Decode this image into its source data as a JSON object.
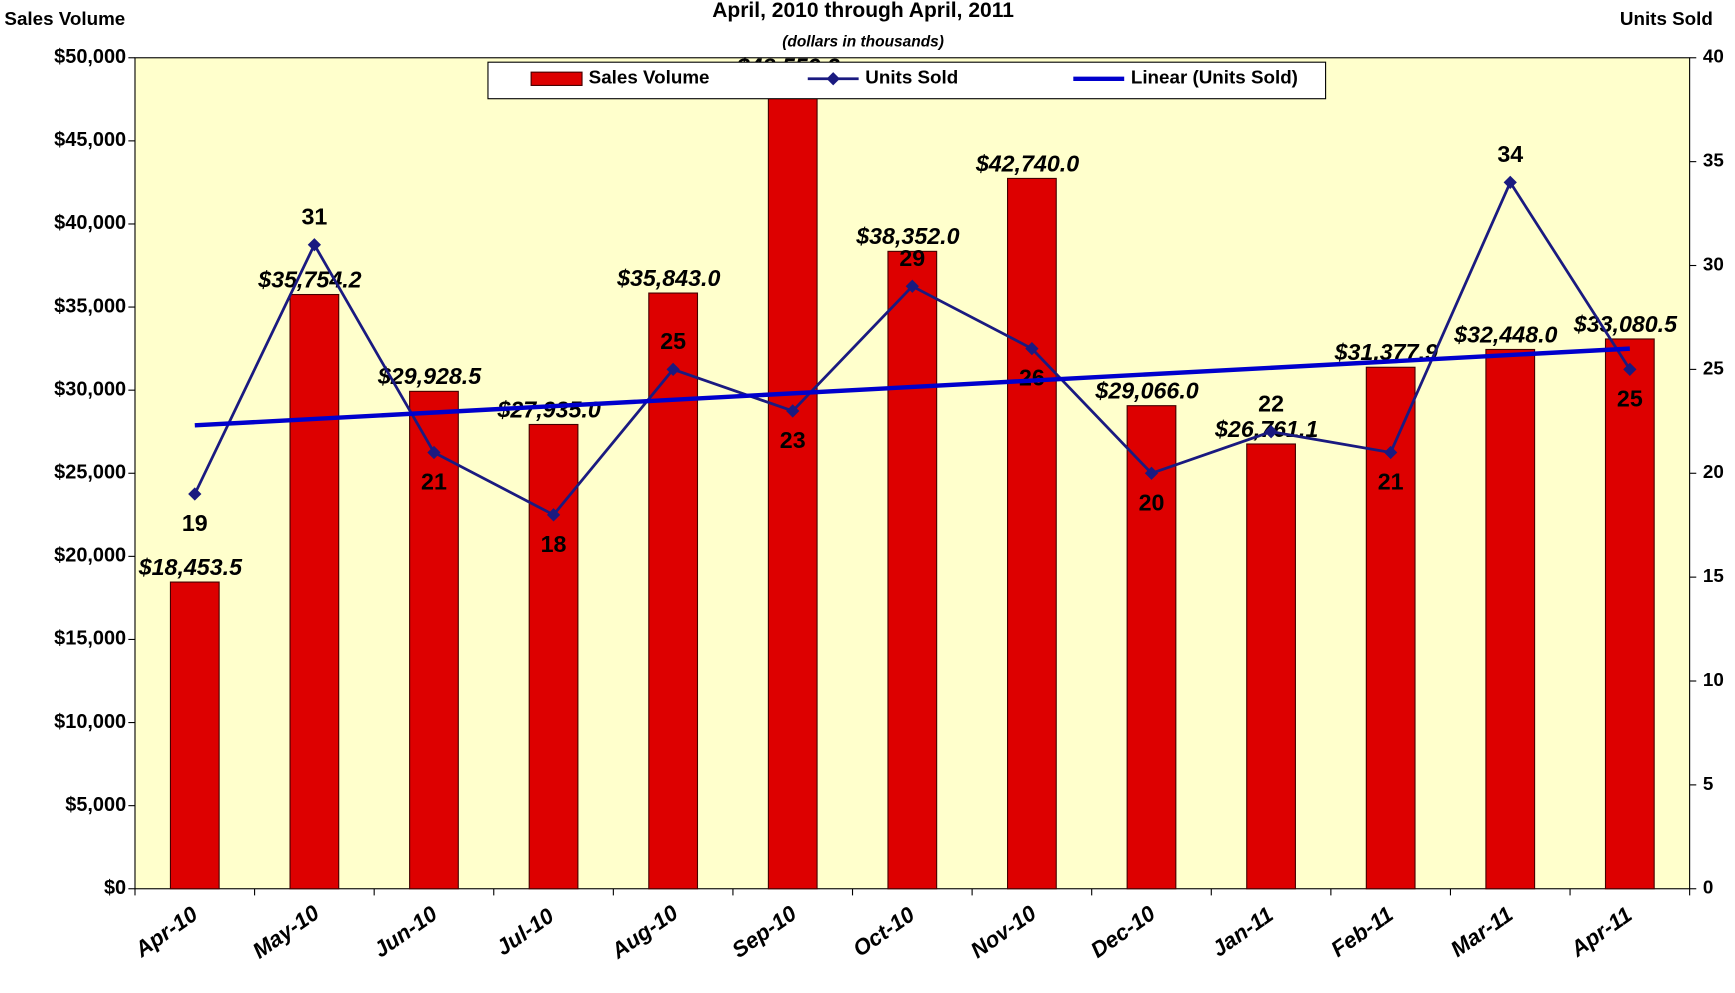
{
  "chart_data": {
    "type": "bar-line",
    "title": "April, 2010 through April, 2011",
    "subtitle": "(dollars in thousands)",
    "y_label": "Sales Volume",
    "y2_label": "Units Sold",
    "categories": [
      "Apr-10",
      "May-10",
      "Jun-10",
      "Jul-10",
      "Aug-10",
      "Sep-10",
      "Oct-10",
      "Nov-10",
      "Dec-10",
      "Jan-11",
      "Feb-11",
      "Mar-11",
      "Apr-11"
    ],
    "series": [
      {
        "name": "Sales Volume",
        "color": "#dd0000",
        "type": "bar",
        "values": [
          18453.5,
          35754.2,
          29928.5,
          27935.0,
          35843.0,
          48559.3,
          38352.0,
          42740.0,
          29066.0,
          26761.1,
          31377.9,
          32448.0,
          33080.5
        ],
        "value_labels": [
          "$18,453.5",
          "$35,754.2",
          "$29,928.5",
          "$27,935.0",
          "$35,843.0",
          "$48,559.3",
          "$38,352.0",
          "$42,740.0",
          "$29,066.0",
          "$26,761.1",
          "$31,377.9",
          "$32,448.0",
          "$33,080.5"
        ]
      },
      {
        "name": "Units Sold",
        "color": "#1a1a80",
        "type": "line",
        "axis": "y2",
        "values": [
          19,
          31,
          21,
          18,
          25,
          23,
          29,
          26,
          20,
          22,
          21,
          34,
          25
        ]
      },
      {
        "name": "Linear (Units Sold)",
        "color": "#0000cc",
        "type": "trendline",
        "axis": "y2"
      }
    ],
    "ylim": [
      0,
      50000
    ],
    "yticks": [
      {
        "value": 0,
        "label": "$0"
      },
      {
        "value": 5000,
        "label": "$5,000"
      },
      {
        "value": 10000,
        "label": "$10,000"
      },
      {
        "value": 15000,
        "label": "$15,000"
      },
      {
        "value": 20000,
        "label": "$20,000"
      },
      {
        "value": 25000,
        "label": "$25,000"
      },
      {
        "value": 30000,
        "label": "$30,000"
      },
      {
        "value": 35000,
        "label": "$35,000"
      },
      {
        "value": 40000,
        "label": "$40,000"
      },
      {
        "value": 45000,
        "label": "$45,000"
      },
      {
        "value": 50000,
        "label": "$50,000"
      }
    ],
    "y2lim": [
      0,
      40
    ],
    "y2ticks": [
      0,
      5,
      10,
      15,
      20,
      25,
      30,
      35,
      40
    ],
    "legend": "top"
  }
}
